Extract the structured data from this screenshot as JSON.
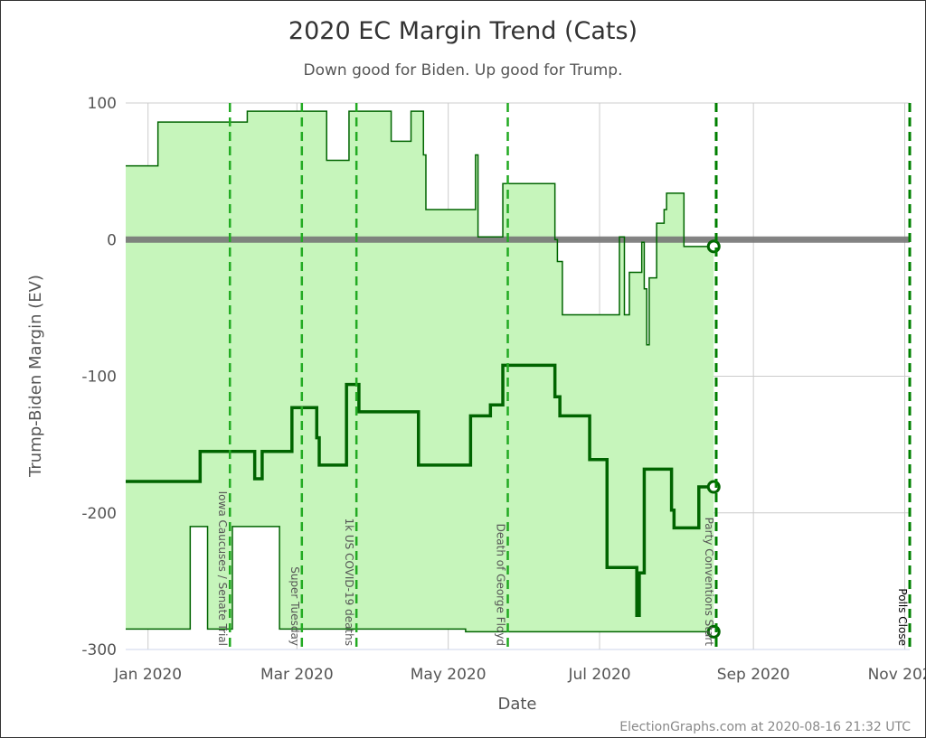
{
  "chart_data": {
    "type": "line",
    "title": "2020 EC Margin Trend (Cats)",
    "subtitle": "Down good for Biden. Up good for Trump.",
    "xlabel": "Date",
    "ylabel": "Trump-Biden Margin (EV)",
    "xlim": [
      "2019-12-23",
      "2020-11-03"
    ],
    "ylim": [
      -300,
      100
    ],
    "grid": true,
    "x_ticks": [
      {
        "date": "2020-01-01",
        "label": "Jan 2020"
      },
      {
        "date": "2020-03-01",
        "label": "Mar 2020"
      },
      {
        "date": "2020-05-01",
        "label": "May 2020"
      },
      {
        "date": "2020-07-01",
        "label": "Jul 2020"
      },
      {
        "date": "2020-09-01",
        "label": "Sep 2020"
      },
      {
        "date": "2020-11-01",
        "label": "Nov 2020"
      }
    ],
    "y_ticks": [
      100,
      0,
      -100,
      -200,
      -300
    ],
    "colors": {
      "line": "#006400",
      "fill": "#c6f5bb",
      "event": "#22aa22",
      "event_strong": "#008000",
      "zero_line": "#777777",
      "grid": "#cccccc"
    },
    "series": [
      {
        "role": "upper",
        "points": [
          [
            "2019-12-23",
            54
          ],
          [
            "2020-01-05",
            86
          ],
          [
            "2020-02-10",
            94
          ],
          [
            "2020-03-13",
            58
          ],
          [
            "2020-03-22",
            94
          ],
          [
            "2020-04-08",
            72
          ],
          [
            "2020-04-16",
            94
          ],
          [
            "2020-04-21",
            62
          ],
          [
            "2020-04-22",
            22
          ],
          [
            "2020-05-12",
            62
          ],
          [
            "2020-05-13",
            2
          ],
          [
            "2020-05-23",
            41
          ],
          [
            "2020-06-13",
            0
          ],
          [
            "2020-06-14",
            -16
          ],
          [
            "2020-06-16",
            -55
          ],
          [
            "2020-07-09",
            2
          ],
          [
            "2020-07-11",
            -55
          ],
          [
            "2020-07-13",
            -24
          ],
          [
            "2020-07-18",
            -2
          ],
          [
            "2020-07-19",
            -36
          ],
          [
            "2020-07-20",
            -77
          ],
          [
            "2020-07-21",
            -28
          ],
          [
            "2020-07-24",
            12
          ],
          [
            "2020-07-27",
            22
          ],
          [
            "2020-07-28",
            34
          ],
          [
            "2020-08-04",
            -5
          ],
          [
            "2020-08-16",
            -5
          ]
        ]
      },
      {
        "role": "center",
        "points": [
          [
            "2019-12-23",
            -177
          ],
          [
            "2020-01-22",
            -155
          ],
          [
            "2020-02-13",
            -175
          ],
          [
            "2020-02-16",
            -155
          ],
          [
            "2020-02-28",
            -123
          ],
          [
            "2020-03-09",
            -145
          ],
          [
            "2020-03-10",
            -165
          ],
          [
            "2020-03-21",
            -106
          ],
          [
            "2020-03-26",
            -126
          ],
          [
            "2020-04-19",
            -165
          ],
          [
            "2020-05-10",
            -129
          ],
          [
            "2020-05-18",
            -121
          ],
          [
            "2020-05-23",
            -92
          ],
          [
            "2020-06-13",
            -115
          ],
          [
            "2020-06-15",
            -129
          ],
          [
            "2020-06-27",
            -161
          ],
          [
            "2020-07-04",
            -240
          ],
          [
            "2020-07-16",
            -275
          ],
          [
            "2020-07-17",
            -244
          ],
          [
            "2020-07-19",
            -168
          ],
          [
            "2020-07-30",
            -198
          ],
          [
            "2020-07-31",
            -211
          ],
          [
            "2020-08-10",
            -181
          ],
          [
            "2020-08-16",
            -181
          ]
        ]
      },
      {
        "role": "lower",
        "points": [
          [
            "2019-12-23",
            -285
          ],
          [
            "2020-01-18",
            -210
          ],
          [
            "2020-01-25",
            -285
          ],
          [
            "2020-02-04",
            -210
          ],
          [
            "2020-02-23",
            -285
          ],
          [
            "2020-05-08",
            -287
          ],
          [
            "2020-08-16",
            -287
          ]
        ]
      }
    ],
    "events": [
      {
        "date": "2020-02-03",
        "label": "Iowa Caucuses / Senate Trial"
      },
      {
        "date": "2020-03-03",
        "label": "Super Tuesday"
      },
      {
        "date": "2020-03-25",
        "label": "1k US COVID-19 deaths"
      },
      {
        "date": "2020-05-25",
        "label": "Death of George Floyd"
      },
      {
        "date": "2020-08-17",
        "label": "Party Conventions Start"
      },
      {
        "date": "2020-11-03",
        "label": "Polls Close"
      }
    ],
    "credit": "ElectionGraphs.com at 2020-08-16 21:32 UTC"
  }
}
